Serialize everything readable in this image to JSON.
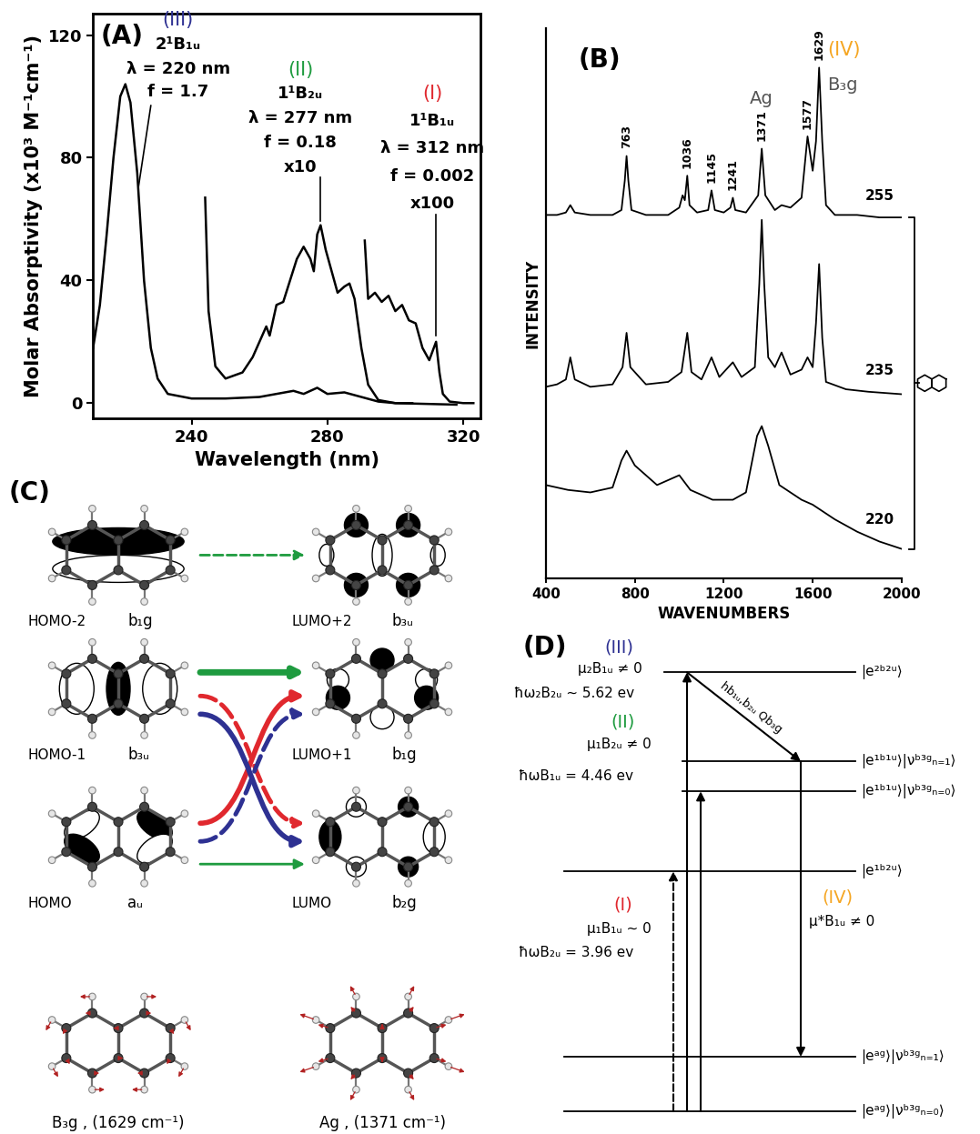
{
  "chart_data": [
    {
      "panel_label": "(A)",
      "type": "line",
      "x_label": "Wavelength (nm)",
      "y_label": "Molar Absorptivity (x10³ M⁻¹cm⁻¹)",
      "xlim": [
        211,
        325
      ],
      "ylim": [
        -5,
        127
      ],
      "xticks": [
        240,
        280,
        320
      ],
      "yticks": [
        0,
        40,
        80,
        120
      ],
      "grid": false,
      "series": [
        {
          "color": "#000000",
          "x": [
            211,
            213,
            215,
            217,
            219,
            220.5,
            222,
            224,
            226,
            228,
            230,
            233,
            240,
            250,
            260,
            265,
            270,
            273,
            277,
            280,
            285,
            290,
            295,
            300,
            318
          ],
          "values": [
            18,
            32,
            55,
            80,
            100,
            104,
            98,
            75,
            40,
            18,
            8,
            3,
            1.5,
            1.5,
            2,
            3,
            4,
            3,
            5,
            3,
            3.5,
            2,
            0.5,
            0,
            -0.5
          ]
        },
        {
          "color": "#000000",
          "x": [
            244,
            245,
            247,
            250,
            255,
            258,
            260,
            262,
            263,
            265,
            267,
            269,
            271,
            273,
            275,
            276,
            277,
            278,
            279.5,
            282,
            283,
            285,
            286.5,
            288,
            290,
            292,
            295,
            300,
            305
          ],
          "values": [
            67,
            30,
            12,
            8,
            10,
            15,
            20,
            25,
            22,
            32,
            33,
            40,
            47,
            51,
            47,
            43,
            55,
            58,
            50,
            40,
            36,
            38,
            39,
            34,
            18,
            6,
            1,
            0,
            0
          ]
        },
        {
          "color": "#000000",
          "x": [
            291,
            292,
            294,
            296,
            298,
            300,
            302,
            304,
            306,
            308,
            310,
            312,
            313,
            314,
            316,
            320,
            323
          ],
          "values": [
            53,
            34,
            36,
            33,
            35,
            30,
            32,
            27,
            26,
            18,
            14,
            20,
            10,
            3,
            0.5,
            0,
            0
          ]
        }
      ],
      "annotations": [
        {
          "numeral": "(III)",
          "color": "#2e3192",
          "lines": [
            "2¹B₁ᵤ",
            "λ = 220 nm",
            "f = 1.7"
          ]
        },
        {
          "numeral": "(II)",
          "color": "#1e9b3f",
          "lines": [
            "1¹B₂ᵤ",
            "λ = 277 nm",
            "f = 0.18",
            "x10"
          ]
        },
        {
          "numeral": "(I)",
          "color": "#e0282e",
          "lines": [
            "1¹B₁ᵤ",
            "λ = 312 nm",
            "f = 0.002",
            "x100"
          ]
        }
      ]
    },
    {
      "panel_label": "(B)",
      "type": "line",
      "x_label": "WAVENUMBERS",
      "y_label": "INTENSITY",
      "xlim": [
        400,
        2000
      ],
      "ylim": [
        0,
        11.2
      ],
      "xticks": [
        400,
        800,
        1200,
        1600,
        2000
      ],
      "tick_labels": "x",
      "grid": false,
      "series": [
        {
          "name": "255",
          "color": "#000000",
          "x": [
            400,
            450,
            490,
            510,
            530,
            600,
            700,
            740,
            755,
            763,
            771,
            785,
            850,
            950,
            1000,
            1015,
            1025,
            1036,
            1046,
            1080,
            1130,
            1145,
            1160,
            1200,
            1230,
            1241,
            1252,
            1300,
            1355,
            1371,
            1387,
            1430,
            1460,
            1500,
            1550,
            1577,
            1600,
            1615,
            1629,
            1643,
            1660,
            1700,
            1800,
            1900,
            2000
          ],
          "values": [
            7.4,
            7.4,
            7.45,
            7.6,
            7.45,
            7.4,
            7.4,
            7.5,
            8.1,
            8.6,
            8.1,
            7.5,
            7.4,
            7.4,
            7.55,
            7.8,
            7.7,
            8.2,
            7.6,
            7.45,
            7.5,
            7.9,
            7.5,
            7.45,
            7.55,
            7.75,
            7.5,
            7.45,
            7.8,
            8.75,
            7.8,
            7.5,
            7.6,
            7.55,
            7.75,
            9.0,
            8.3,
            8.9,
            10.4,
            8.9,
            7.6,
            7.4,
            7.4,
            7.35,
            7.35
          ]
        },
        {
          "name": "235",
          "color": "#000000",
          "x": [
            400,
            450,
            490,
            510,
            530,
            600,
            700,
            745,
            763,
            780,
            850,
            950,
            1010,
            1036,
            1055,
            1100,
            1145,
            1180,
            1241,
            1280,
            1340,
            1360,
            1371,
            1382,
            1400,
            1430,
            1460,
            1500,
            1550,
            1577,
            1600,
            1615,
            1629,
            1643,
            1660,
            1750,
            1850,
            2000
          ],
          "values": [
            3.9,
            3.95,
            4.05,
            4.5,
            4.05,
            3.9,
            3.95,
            4.3,
            5.0,
            4.3,
            3.95,
            4.0,
            4.2,
            5.0,
            4.2,
            4.05,
            4.5,
            4.1,
            4.4,
            4.1,
            4.3,
            6.0,
            7.3,
            6.0,
            4.5,
            4.3,
            4.6,
            4.15,
            4.25,
            4.5,
            4.3,
            5.2,
            6.4,
            4.9,
            4.0,
            3.85,
            3.8,
            3.75
          ]
        },
        {
          "name": "220",
          "color": "#000000",
          "x": [
            400,
            500,
            600,
            700,
            740,
            763,
            800,
            900,
            1000,
            1050,
            1150,
            1241,
            1300,
            1350,
            1371,
            1400,
            1450,
            1550,
            1600,
            1700,
            1800,
            1900,
            2000
          ],
          "values": [
            1.9,
            1.8,
            1.75,
            1.85,
            2.4,
            2.6,
            2.3,
            1.9,
            2.1,
            1.8,
            1.6,
            1.6,
            1.75,
            2.9,
            3.1,
            2.7,
            1.9,
            1.6,
            1.5,
            1.2,
            0.95,
            0.75,
            0.6
          ]
        }
      ],
      "peak_labels": [
        763,
        1036,
        1145,
        1241,
        1371,
        1577,
        1629
      ],
      "mode_labels": [
        {
          "x": 1371,
          "text": "Ag",
          "color": "#555555"
        },
        {
          "x": 1629,
          "numeral": "(IV)",
          "numeral_color": "#f5a623",
          "text": "B₃g",
          "color": "#555555"
        }
      ]
    }
  ],
  "diagram_C": {
    "panel_label": "(C)",
    "orbitals": [
      {
        "name": "HOMO-2",
        "symmetry": "b₁g"
      },
      {
        "name": "LUMO+2",
        "symmetry": "b₃ᵤ"
      },
      {
        "name": "HOMO-1",
        "symmetry": "b₃ᵤ"
      },
      {
        "name": "LUMO+1",
        "symmetry": "b₁g"
      },
      {
        "name": "HOMO",
        "symmetry": "aᵤ"
      },
      {
        "name": "LUMO",
        "symmetry": "b₂g"
      }
    ],
    "transitions": [
      {
        "from": "HOMO-2",
        "to": "LUMO+2",
        "color": "#1e9b3f",
        "line_style": "dashed"
      },
      {
        "from": "HOMO-1",
        "to": "LUMO+1",
        "color": "#1e9b3f",
        "line_style": "solid"
      },
      {
        "from": "HOMO",
        "to": "LUMO+1",
        "color": "#e0282e",
        "line_style": "solid"
      },
      {
        "from": "HOMO-1",
        "to": "LUMO",
        "color": "#e0282e",
        "line_style": "dashed"
      },
      {
        "from": "HOMO-1",
        "to": "LUMO",
        "color": "#2e3192",
        "line_style": "solid"
      },
      {
        "from": "HOMO",
        "to": "LUMO+1",
        "color": "#2e3192",
        "line_style": "dashed"
      },
      {
        "from": "HOMO",
        "to": "LUMO",
        "color": "#1e9b3f",
        "line_style": "solid"
      }
    ],
    "modes": [
      {
        "label": "B₃g , (1629 cm⁻¹)"
      },
      {
        "label": "Ag , (1371 cm⁻¹)"
      }
    ]
  },
  "diagram_D": {
    "panel_label": "(D)",
    "levels": [
      "|e²ᵇ²ᵘ⟩",
      "|e¹ᵇ¹ᵘ⟩|νᵇ³ᵍₙ₌₁⟩",
      "|e¹ᵇ¹ᵘ⟩|νᵇ³ᵍₙ₌₀⟩",
      "|e¹ᵇ²ᵘ⟩",
      "|eᵃᵍ⟩|νᵇ³ᵍₙ₌₁⟩",
      "|eᵃᵍ⟩|νᵇ³ᵍₙ₌₀⟩"
    ],
    "transitions": [
      {
        "numeral": "(III)",
        "color": "#2e3192",
        "dipole": "μ₂B₁ᵤ ≠ 0",
        "energy": "ħω₂B₂ᵤ ~ 5.62 ev",
        "from": 5,
        "to": 0,
        "line_style": "solid"
      },
      {
        "numeral": "(II)",
        "color": "#1e9b3f",
        "dipole": "μ₁B₂ᵤ ≠ 0",
        "energy": "ħωB₁ᵤ = 4.46 ev",
        "from": 5,
        "to": 2,
        "line_style": "solid"
      },
      {
        "numeral": "(I)",
        "color": "#e0282e",
        "dipole": "μ₁B₁ᵤ ~ 0",
        "energy": "ħωB₂ᵤ = 3.96 ev",
        "from": 5,
        "to": 3,
        "line_style": "dashed"
      },
      {
        "coupling": "hb₁ᵤ,b₂ᵤ Qb₃g",
        "from": 0,
        "to": 1,
        "line_style": "solid"
      },
      {
        "numeral": "(IV)",
        "color": "#f5a623",
        "dipole": "μ*B₁ᵤ ≠ 0",
        "from": 1,
        "to": 4,
        "line_style": "solid"
      }
    ]
  }
}
